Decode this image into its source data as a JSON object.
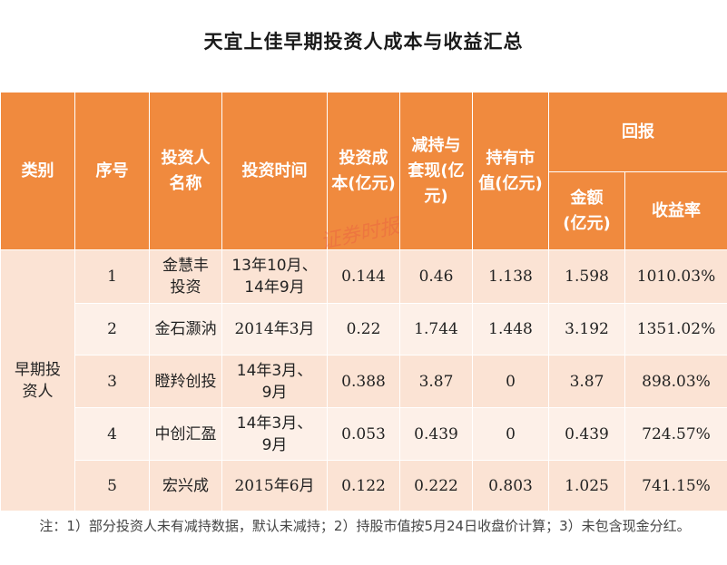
{
  "title": "天宜上佳早期投资人成本与收益汇总",
  "headers": {
    "category": "类别",
    "serial": "序号",
    "investor": "投资人名称",
    "time": "投资时间",
    "cost": "投资成本(亿元)",
    "reduce": "减持与套现(亿元)",
    "market_value": "持有市值(亿元)",
    "return": "回报",
    "amount": "金额(亿元)",
    "yield": "收益率"
  },
  "category_value": "早期投资人",
  "rows": [
    {
      "serial": "1",
      "investor": "金慧丰投资",
      "time": "13年10月、14年9月",
      "cost": "0.144",
      "reduce": "0.46",
      "market_value": "1.138",
      "amount": "1.598",
      "yield": "1010.03%"
    },
    {
      "serial": "2",
      "investor": "金石灏汭",
      "time": "2014年3月",
      "cost": "0.22",
      "reduce": "1.744",
      "market_value": "1.448",
      "amount": "3.192",
      "yield": "1351.02%"
    },
    {
      "serial": "3",
      "investor": "瞪羚创投",
      "time": "14年3月、9月",
      "cost": "0.388",
      "reduce": "3.87",
      "market_value": "0",
      "amount": "3.87",
      "yield": "898.03%"
    },
    {
      "serial": "4",
      "investor": "中创汇盈",
      "time": "14年3月、9月",
      "cost": "0.053",
      "reduce": "0.439",
      "market_value": "0",
      "amount": "0.439",
      "yield": "724.57%"
    },
    {
      "serial": "5",
      "investor": "宏兴成",
      "time": "2015年6月",
      "cost": "0.122",
      "reduce": "0.222",
      "market_value": "0.803",
      "amount": "1.025",
      "yield": "741.15%"
    }
  ],
  "watermark": "证券时报",
  "note": "注：1）部分投资人未有减持数据，默认未减持；2）持股市值按5月24日收盘价计算；3）未包含现金分红。"
}
